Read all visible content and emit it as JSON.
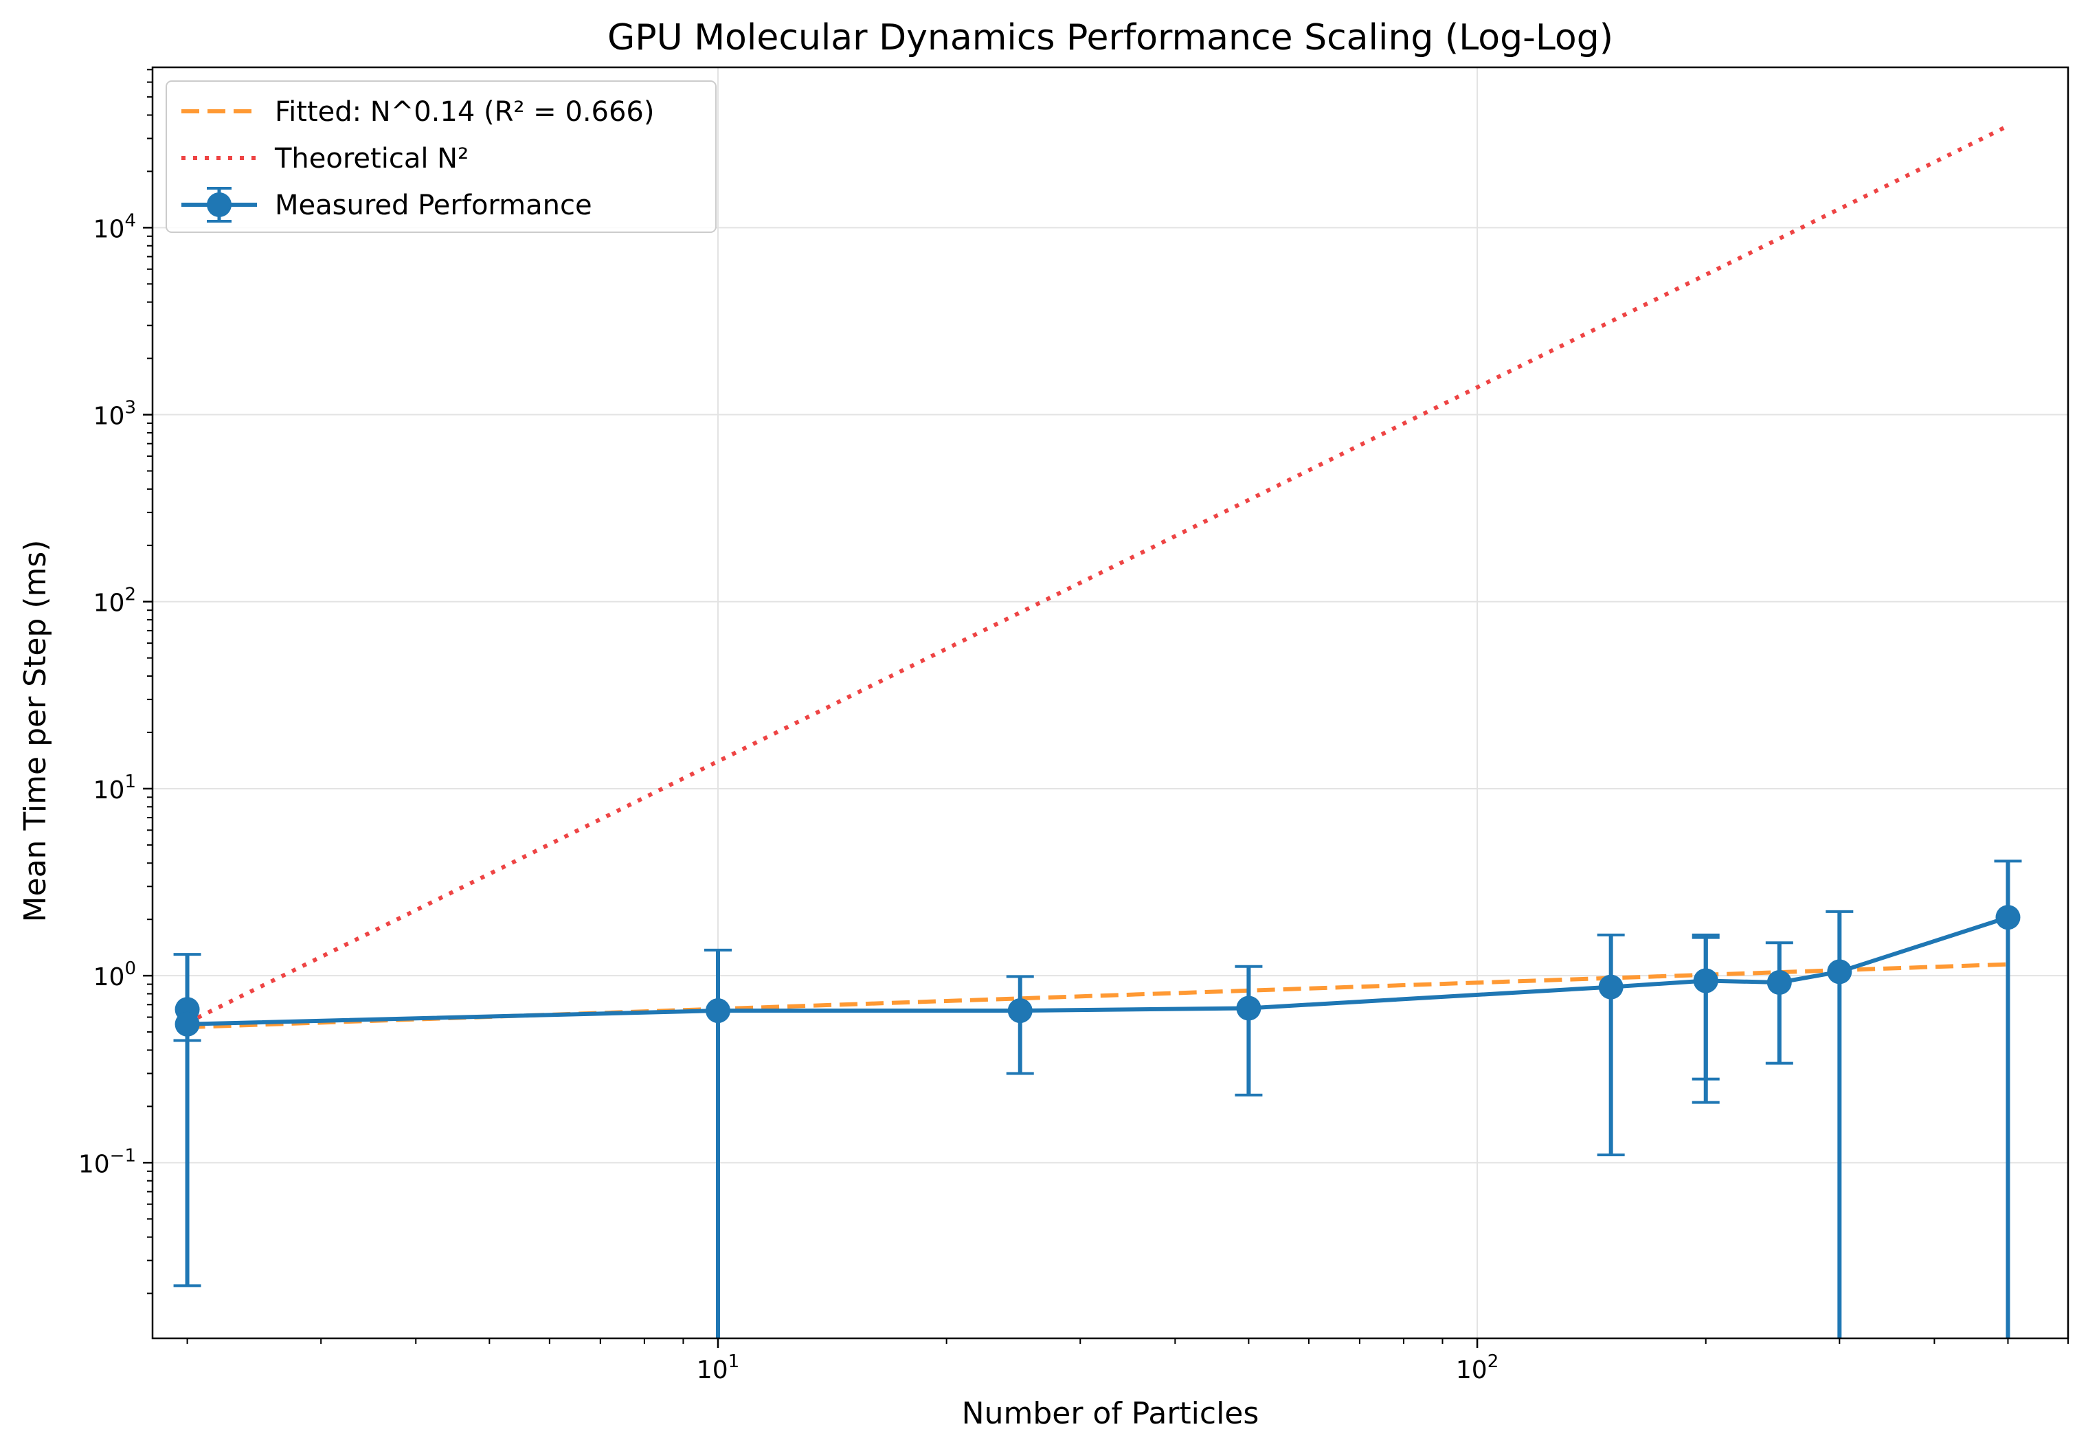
{
  "chart_data": {
    "type": "line",
    "title": "GPU Molecular Dynamics Performance Scaling (Log-Log)",
    "xlabel": "Number of Particles",
    "ylabel": "Mean Time per Step (ms)",
    "xscale": "log",
    "yscale": "log",
    "xlim": [
      1.8,
      600
    ],
    "ylim": [
      0.0115,
      72000
    ],
    "grid": true,
    "legend_location": "upper left",
    "x_ticks": [
      {
        "value": 10,
        "base": "10",
        "exp": "1"
      },
      {
        "value": 100,
        "base": "10",
        "exp": "2"
      }
    ],
    "y_ticks": [
      {
        "value": 0.1,
        "base": "10",
        "exp": "−1"
      },
      {
        "value": 1,
        "base": "10",
        "exp": "0"
      },
      {
        "value": 10,
        "base": "10",
        "exp": "1"
      },
      {
        "value": 100,
        "base": "10",
        "exp": "2"
      },
      {
        "value": 1000,
        "base": "10",
        "exp": "3"
      },
      {
        "value": 10000,
        "base": "10",
        "exp": "4"
      }
    ],
    "series": [
      {
        "name": "Fitted: N^0.14 (R² = 0.666)",
        "style": "dashed",
        "color": "#ff9933",
        "x": [
          2,
          500
        ],
        "y": [
          0.53,
          1.15
        ]
      },
      {
        "name": "Theoretical N²",
        "style": "dotted",
        "color": "#ee4444",
        "x": [
          2,
          500
        ],
        "y": [
          0.56,
          35000
        ]
      },
      {
        "name": "Measured Performance",
        "style": "solid-markers-errorbars",
        "color": "#1f77b4",
        "points": [
          {
            "x": 2,
            "y": 0.66,
            "lo": 0.022,
            "hi": 1.3
          },
          {
            "x": 2,
            "y": 0.55,
            "lo": 0.45,
            "hi": 0.45
          },
          {
            "x": 10,
            "y": 0.65,
            "lo": 0.0115,
            "hi": 1.37
          },
          {
            "x": 25,
            "y": 0.65,
            "lo": 0.3,
            "hi": 0.99
          },
          {
            "x": 50,
            "y": 0.67,
            "lo": 0.23,
            "hi": 1.12
          },
          {
            "x": 150,
            "y": 0.87,
            "lo": 0.11,
            "hi": 1.65
          },
          {
            "x": 200,
            "y": 0.94,
            "lo": 0.28,
            "hi": 1.65
          },
          {
            "x": 200,
            "y": 0.94,
            "lo": 0.21,
            "hi": 1.6
          },
          {
            "x": 250,
            "y": 0.92,
            "lo": 0.34,
            "hi": 1.5
          },
          {
            "x": 300,
            "y": 1.05,
            "lo": 0.0115,
            "hi": 2.2
          },
          {
            "x": 500,
            "y": 2.05,
            "lo": 0.0115,
            "hi": 4.1
          }
        ]
      }
    ]
  }
}
